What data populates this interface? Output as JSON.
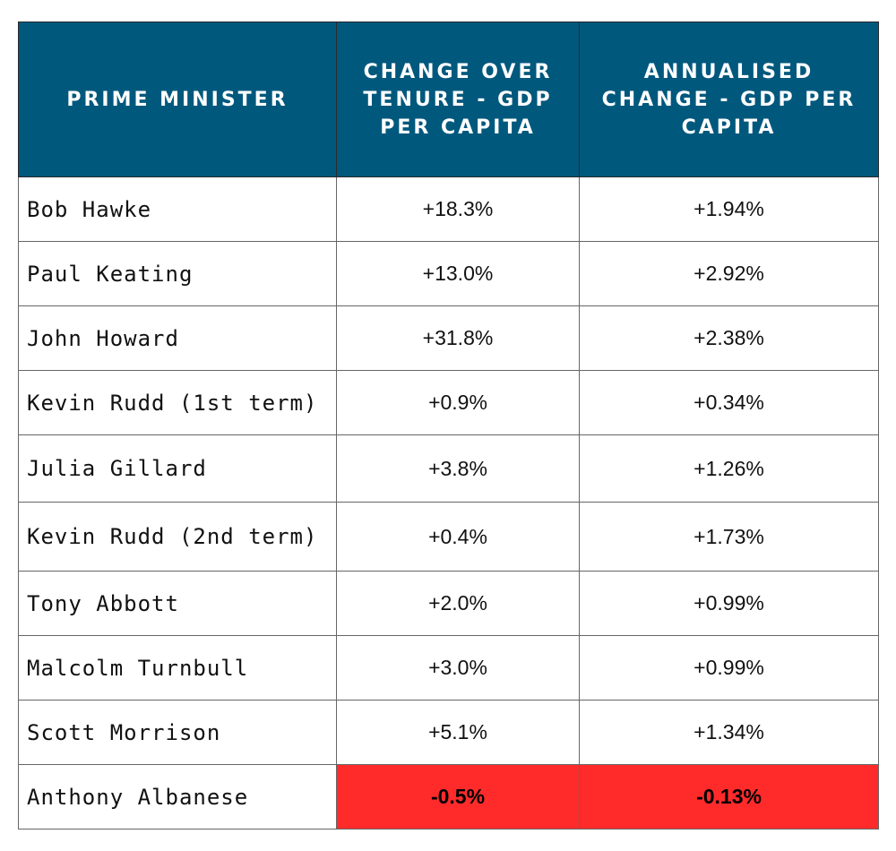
{
  "table": {
    "headers": [
      "PRIME MINISTER",
      "CHANGE OVER TENURE - GDP PER CAPITA",
      "ANNUALISED CHANGE - GDP PER CAPITA"
    ],
    "rows": [
      {
        "name": "Bob Hawke",
        "tenure_change": "+18.3%",
        "annualised_change": "+1.94%"
      },
      {
        "name": "Paul Keating",
        "tenure_change": "+13.0%",
        "annualised_change": "+2.92%"
      },
      {
        "name": "John Howard",
        "tenure_change": "+31.8%",
        "annualised_change": "+2.38%"
      },
      {
        "name": "Kevin Rudd (1st term)",
        "tenure_change": "+0.9%",
        "annualised_change": "+0.34%"
      },
      {
        "name": "Julia Gillard",
        "tenure_change": "+3.8%",
        "annualised_change": "+1.26%"
      },
      {
        "name": "Kevin Rudd (2nd term)",
        "tenure_change": "+0.4%",
        "annualised_change": "+1.73%"
      },
      {
        "name": "Tony Abbott",
        "tenure_change": "+2.0%",
        "annualised_change": "+0.99%"
      },
      {
        "name": "Malcolm Turnbull",
        "tenure_change": "+3.0%",
        "annualised_change": "+0.99%"
      },
      {
        "name": "Scott Morrison",
        "tenure_change": "+5.1%",
        "annualised_change": "+1.34%"
      },
      {
        "name": "Anthony Albanese",
        "tenure_change": "-0.5%",
        "annualised_change": "-0.13%"
      }
    ]
  },
  "colors": {
    "header_background": "#00587d",
    "header_text": "#ffffff",
    "negative_highlight": "#ff2b2b"
  }
}
